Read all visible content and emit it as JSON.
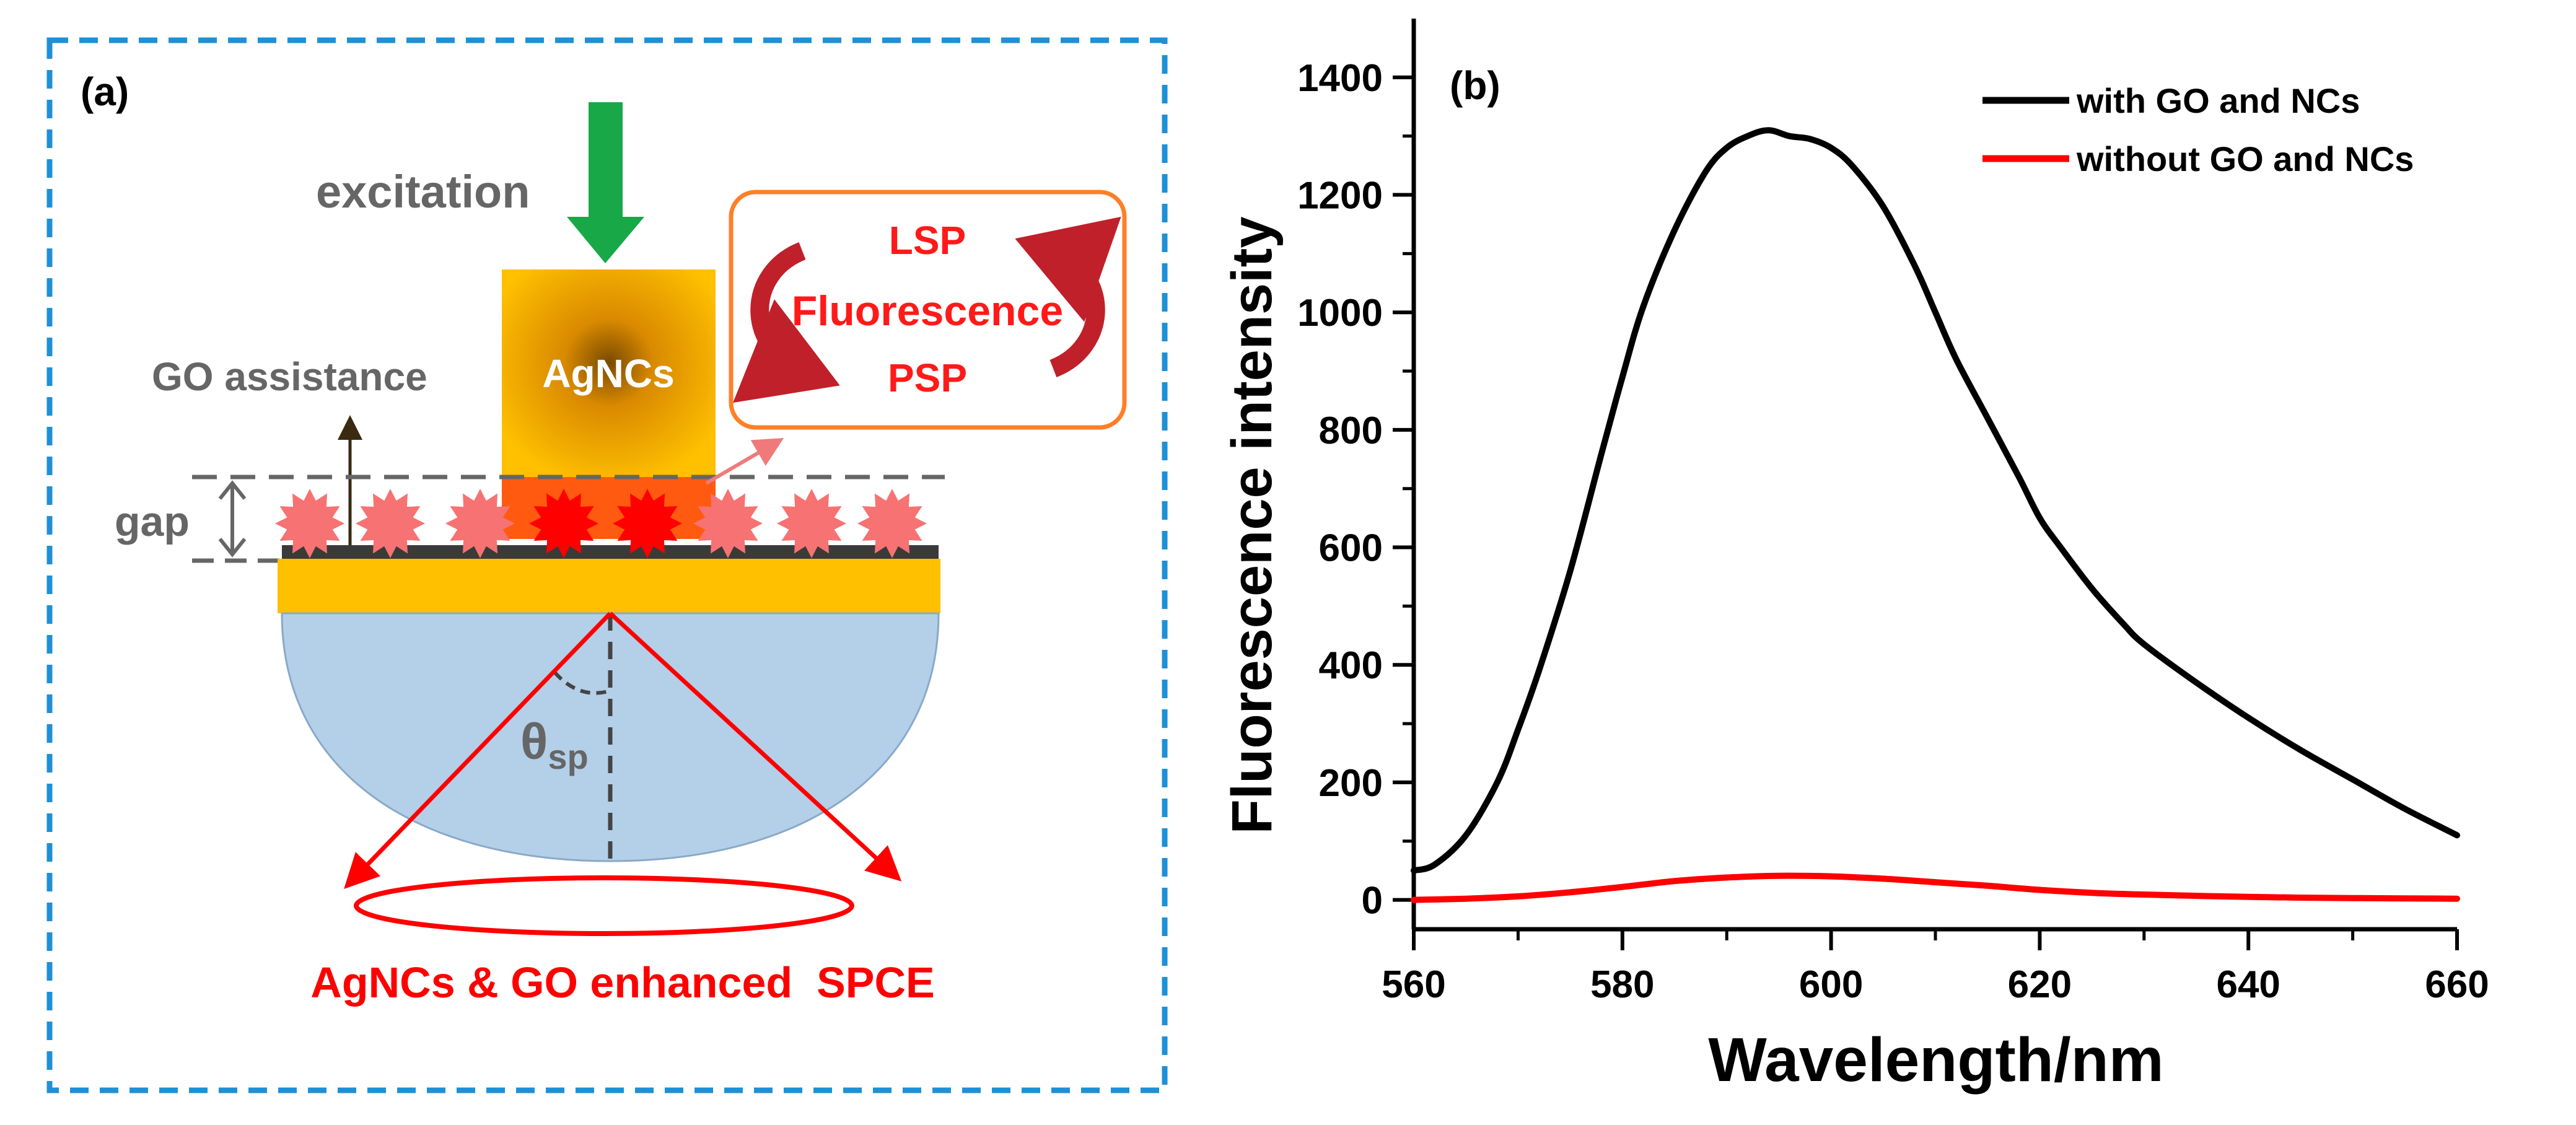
{
  "panel_a": {
    "label": "(a)",
    "excitation": "excitation",
    "agncs": "AgNCs",
    "go_assistance": "GO assistance",
    "gap": "gap",
    "theta": "θ",
    "theta_sub": "sp",
    "caption": "AgNCs & GO enhanced  SPCE",
    "box": {
      "line1": "LSP",
      "line2": "Fluorescence",
      "line3": "PSP"
    },
    "colors": {
      "border": "#1e90d6",
      "arrow_green": "#18a848",
      "gold": "#ffc000",
      "red": "#ff0000",
      "star_pink": "#f77272",
      "prism": "#b4cfe8",
      "grey_text": "#666666",
      "box_border": "#ff7f27",
      "curved_arrow": "#c0202a"
    }
  },
  "panel_b": {
    "label": "(b)",
    "chart_data": {
      "type": "line",
      "title": "",
      "xlabel": "Wavelength/nm",
      "ylabel": "Fluorescence intensity",
      "xlim": [
        560,
        660
      ],
      "ylim": [
        -50,
        1500
      ],
      "xticks": [
        560,
        580,
        600,
        620,
        640,
        660
      ],
      "yticks": [
        0,
        200,
        400,
        600,
        800,
        1000,
        1200,
        1400
      ],
      "legend_position": "top-right",
      "series": [
        {
          "name": "with GO and NCs",
          "color": "#000000",
          "x": [
            560,
            562,
            565,
            568,
            570,
            572,
            575,
            578,
            580,
            582,
            585,
            588,
            590,
            592,
            594,
            596,
            598,
            600,
            602,
            605,
            608,
            610,
            612,
            615,
            618,
            620,
            622,
            625,
            628,
            630,
            635,
            640,
            645,
            650,
            655,
            660
          ],
          "y": [
            50,
            60,
            110,
            200,
            290,
            390,
            560,
            760,
            890,
            1010,
            1140,
            1240,
            1280,
            1300,
            1310,
            1300,
            1295,
            1280,
            1250,
            1180,
            1080,
            1000,
            920,
            820,
            720,
            650,
            600,
            530,
            470,
            435,
            370,
            310,
            255,
            205,
            155,
            110
          ]
        },
        {
          "name": "without GO and NCs",
          "color": "#ff0000",
          "x": [
            560,
            565,
            570,
            575,
            580,
            585,
            590,
            595,
            600,
            605,
            610,
            615,
            620,
            625,
            630,
            640,
            650,
            660
          ],
          "y": [
            0,
            2,
            6,
            13,
            22,
            32,
            38,
            41,
            40,
            36,
            30,
            24,
            17,
            12,
            9,
            5,
            3,
            2
          ]
        }
      ]
    }
  }
}
